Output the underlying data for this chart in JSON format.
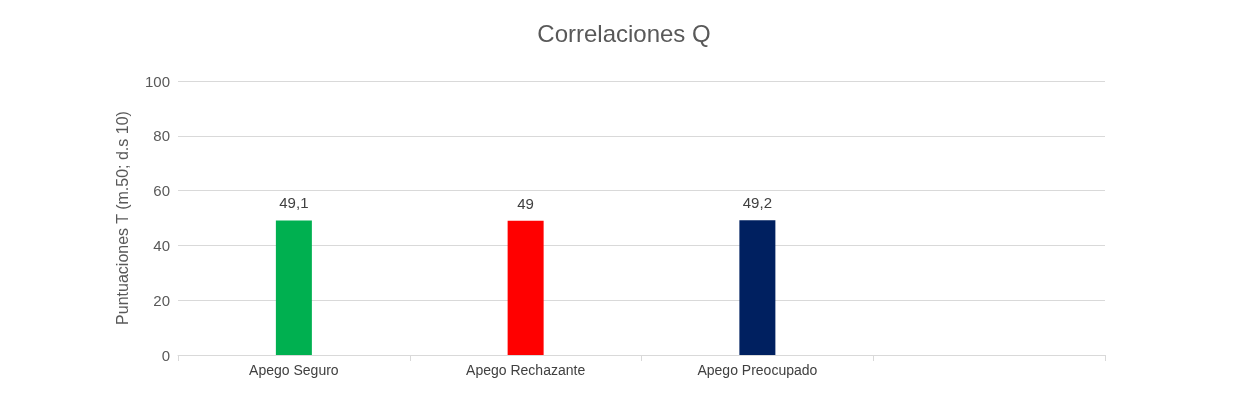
{
  "chart_data": {
    "type": "bar",
    "title": "Correlaciones Q",
    "ylabel": "Puntuaciones T (m.50; d.s 10)",
    "categories": [
      "Apego Seguro",
      "Apego Rechazante",
      "Apego Preocupado",
      null
    ],
    "values": [
      49.1,
      49,
      49.2,
      null
    ],
    "colors": [
      "#00b050",
      "#ff0000",
      "#002060",
      null
    ],
    "value_labels": [
      "49,1",
      "49",
      "49,2",
      null
    ],
    "ylim": [
      0,
      100
    ],
    "yticks": [
      0,
      20,
      40,
      60,
      80,
      100
    ],
    "grid": "y"
  }
}
